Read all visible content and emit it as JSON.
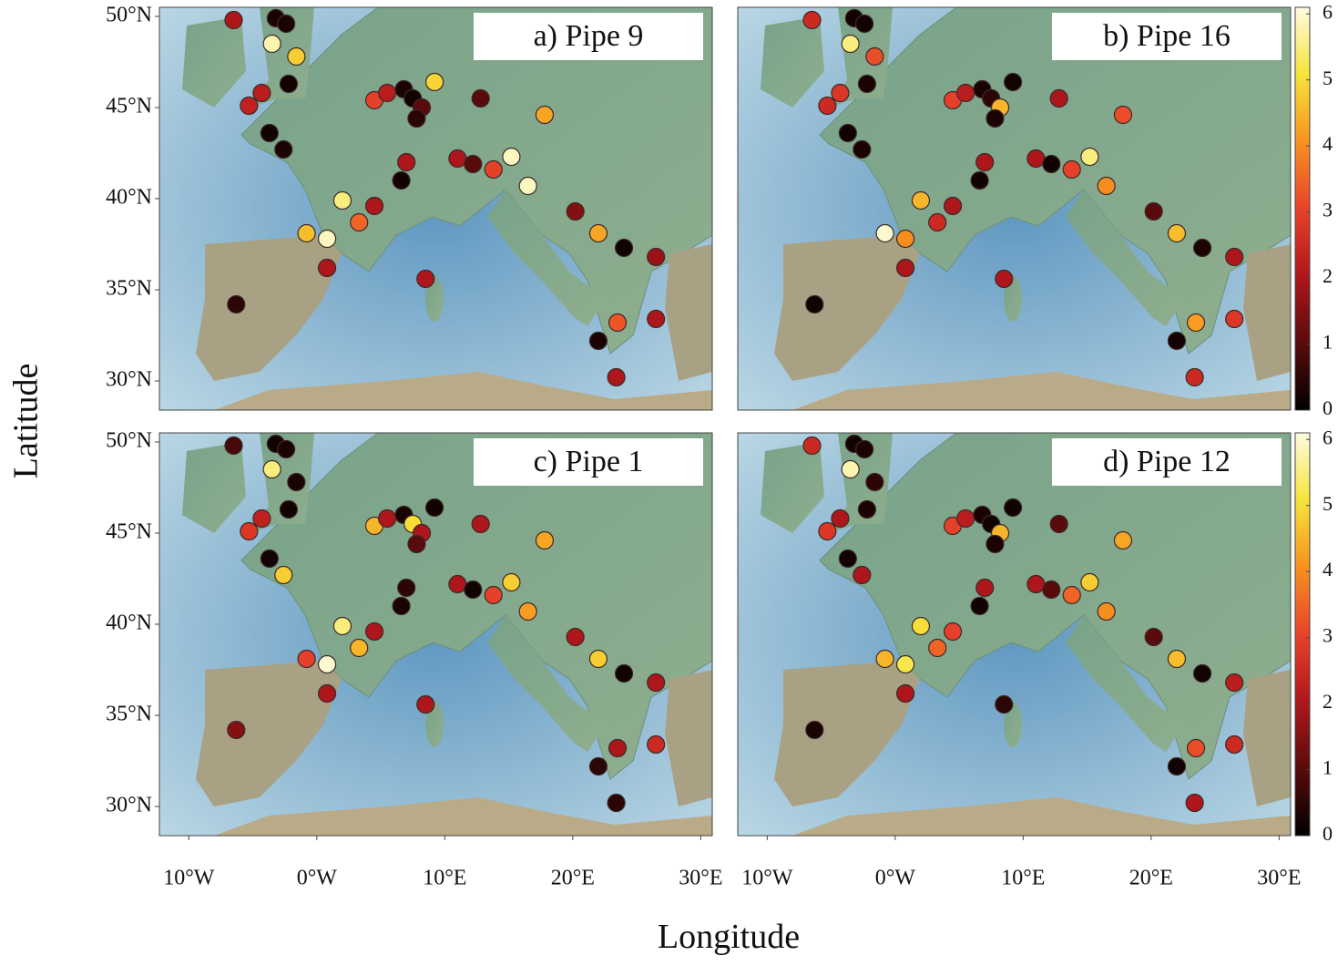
{
  "chart_data": [
    {
      "type": "scatter",
      "title": "a) Pipe 9",
      "xlim": [
        -12.3,
        30.9
      ],
      "ylim": [
        28.4,
        50.5
      ],
      "yticks": [
        {
          "value": 30,
          "label": "30°N"
        },
        {
          "value": 35,
          "label": "35°N"
        },
        {
          "value": 40,
          "label": "40°N"
        },
        {
          "value": 45,
          "label": "45°N"
        },
        {
          "value": 50,
          "label": "50°N"
        }
      ],
      "x": [
        -6.5,
        -3.2,
        -2.4,
        -3.5,
        -1.6,
        -2.2,
        -5.3,
        -4.3,
        -3.7,
        -2.6,
        4.5,
        5.5,
        6.8,
        7.5,
        8.2,
        9.2,
        7.8,
        12.8,
        17.8,
        11,
        12.2,
        13.8,
        15.2,
        16.5,
        7,
        6.6,
        4.5,
        2,
        3.3,
        -0.8,
        0.8,
        0.8,
        -6.3,
        8.5,
        20.2,
        22,
        24,
        26.5,
        22,
        23.5,
        23.4,
        26.5
      ],
      "y": [
        49.8,
        49.9,
        49.6,
        48.5,
        47.8,
        46.3,
        45.1,
        45.8,
        43.6,
        42.7,
        45.4,
        45.8,
        46,
        45.5,
        45,
        46.4,
        44.4,
        45.5,
        44.6,
        42.2,
        41.9,
        41.6,
        42.3,
        40.7,
        42,
        41,
        39.6,
        39.9,
        38.7,
        38.1,
        37.8,
        36.2,
        34.2,
        35.6,
        39.3,
        38.1,
        37.3,
        36.8,
        32.2,
        33.2,
        30.2,
        33.4
      ],
      "values": [
        2,
        0.3,
        0.3,
        5.8,
        4.8,
        0.2,
        2.3,
        2.2,
        0.2,
        0.3,
        3,
        2.2,
        0.3,
        0.2,
        1,
        4.9,
        0.5,
        1,
        4.3,
        2,
        1,
        3,
        5.9,
        5.9,
        2,
        0.2,
        2,
        5.5,
        3.5,
        4.6,
        5.9,
        2,
        0.5,
        2,
        1.5,
        4.3,
        0.2,
        1.8,
        0.3,
        3.3,
        2,
        2
      ]
    },
    {
      "type": "scatter",
      "title": "b) Pipe 16",
      "xlim": [
        -12.3,
        30.9
      ],
      "ylim": [
        28.4,
        50.5
      ],
      "colorbar": {
        "lim": [
          0,
          6.1
        ],
        "ticks": [
          0,
          1,
          2,
          3,
          4,
          5,
          6
        ]
      },
      "x": [
        -6.5,
        -3.2,
        -2.4,
        -3.5,
        -1.6,
        -2.2,
        -5.3,
        -4.3,
        -3.7,
        -2.6,
        4.5,
        5.5,
        6.8,
        7.5,
        8.2,
        9.2,
        7.8,
        12.8,
        17.8,
        11,
        12.2,
        13.8,
        15.2,
        16.5,
        7,
        6.6,
        4.5,
        2,
        3.3,
        -0.8,
        0.8,
        0.8,
        -6.3,
        8.5,
        20.2,
        22,
        24,
        26.5,
        22,
        23.5,
        23.4,
        26.5
      ],
      "y": [
        49.8,
        49.9,
        49.6,
        48.5,
        47.8,
        46.3,
        45.1,
        45.8,
        43.6,
        42.7,
        45.4,
        45.8,
        46,
        45.5,
        45,
        46.4,
        44.4,
        45.5,
        44.6,
        42.2,
        41.9,
        41.6,
        42.3,
        40.7,
        42,
        41,
        39.6,
        39.9,
        38.7,
        38.1,
        37.8,
        36.2,
        34.2,
        35.6,
        39.3,
        38.1,
        37.3,
        36.8,
        32.2,
        33.2,
        30.2,
        33.4
      ],
      "values": [
        2.5,
        0.2,
        0.2,
        5.5,
        3.2,
        0.3,
        2.5,
        2.8,
        0.2,
        0.3,
        3,
        2.2,
        0.3,
        0.5,
        4.5,
        0.2,
        0.3,
        2,
        3.2,
        2,
        0.2,
        3,
        5.5,
        4,
        2,
        0.2,
        2,
        4.5,
        2.5,
        6,
        4,
        2,
        0.2,
        2,
        1,
        4.6,
        0.3,
        2,
        0.2,
        4.2,
        2.5,
        2.8
      ]
    },
    {
      "type": "scatter",
      "title": "c) Pipe 1",
      "xlim": [
        -12.3,
        30.9
      ],
      "ylim": [
        28.4,
        50.5
      ],
      "yticks": [
        {
          "value": 30,
          "label": "30°N"
        },
        {
          "value": 35,
          "label": "35°N"
        },
        {
          "value": 40,
          "label": "40°N"
        },
        {
          "value": 45,
          "label": "45°N"
        },
        {
          "value": 50,
          "label": "50°N"
        }
      ],
      "xticks": [
        {
          "value": -10,
          "label": "10°W"
        },
        {
          "value": 0,
          "label": "0°W"
        },
        {
          "value": 10,
          "label": "10°E"
        },
        {
          "value": 20,
          "label": "20°E"
        },
        {
          "value": 30,
          "label": "30°E"
        }
      ],
      "x": [
        -6.5,
        -3.2,
        -2.4,
        -3.5,
        -1.6,
        -2.2,
        -5.3,
        -4.3,
        -3.7,
        -2.6,
        4.5,
        5.5,
        6.8,
        7.5,
        8.2,
        9.2,
        7.8,
        12.8,
        17.8,
        11,
        12.2,
        13.8,
        15.2,
        16.5,
        7,
        6.6,
        4.5,
        2,
        3.3,
        -0.8,
        0.8,
        0.8,
        -6.3,
        8.5,
        20.2,
        22,
        24,
        26.5,
        22,
        23.5,
        23.4,
        26.5
      ],
      "y": [
        49.8,
        49.9,
        49.6,
        48.5,
        47.8,
        46.3,
        45.1,
        45.8,
        43.6,
        42.7,
        45.4,
        45.8,
        46,
        45.5,
        45,
        46.4,
        44.4,
        45.5,
        44.6,
        42.2,
        41.9,
        41.6,
        42.3,
        40.7,
        42,
        41,
        39.6,
        39.9,
        38.7,
        38.1,
        37.8,
        36.2,
        34.2,
        35.6,
        39.3,
        38.1,
        37.3,
        36.8,
        32.2,
        33.2,
        30.2,
        33.4
      ],
      "values": [
        0.8,
        0.2,
        0.3,
        5.5,
        0.3,
        0.2,
        2.8,
        2.3,
        0.2,
        4.8,
        4.5,
        2,
        0.3,
        5,
        2,
        0.2,
        1,
        2,
        4.3,
        2,
        0.2,
        3,
        4.8,
        4.2,
        0.5,
        0.3,
        2,
        5.5,
        4.5,
        3,
        6,
        2,
        1.5,
        2,
        2,
        4.8,
        0.2,
        2,
        0.5,
        2,
        0.5,
        2.5
      ]
    },
    {
      "type": "scatter",
      "title": "d) Pipe 12",
      "xlim": [
        -12.3,
        30.9
      ],
      "ylim": [
        28.4,
        50.5
      ],
      "xticks": [
        {
          "value": -10,
          "label": "10°W"
        },
        {
          "value": 0,
          "label": "0°W"
        },
        {
          "value": 10,
          "label": "10°E"
        },
        {
          "value": 20,
          "label": "20°E"
        },
        {
          "value": 30,
          "label": "30°E"
        }
      ],
      "colorbar": {
        "lim": [
          0,
          6.1
        ],
        "ticks": [
          0,
          1,
          2,
          3,
          4,
          5,
          6
        ]
      },
      "x": [
        -6.5,
        -3.2,
        -2.4,
        -3.5,
        -1.6,
        -2.2,
        -5.3,
        -4.3,
        -3.7,
        -2.6,
        4.5,
        5.5,
        6.8,
        7.5,
        8.2,
        9.2,
        7.8,
        12.8,
        17.8,
        11,
        12.2,
        13.8,
        15.2,
        16.5,
        7,
        6.6,
        4.5,
        2,
        3.3,
        -0.8,
        0.8,
        0.8,
        -6.3,
        8.5,
        20.2,
        22,
        24,
        26.5,
        22,
        23.5,
        23.4,
        26.5
      ],
      "y": [
        49.8,
        49.9,
        49.6,
        48.5,
        47.8,
        46.3,
        45.1,
        45.8,
        43.6,
        42.7,
        45.4,
        45.8,
        46,
        45.5,
        45,
        46.4,
        44.4,
        45.5,
        44.6,
        42.2,
        41.9,
        41.6,
        42.3,
        40.7,
        42,
        41,
        39.6,
        39.9,
        38.7,
        38.1,
        37.8,
        36.2,
        34.2,
        35.6,
        39.3,
        38.1,
        37.3,
        36.8,
        32.2,
        33.2,
        30.2,
        33.4
      ],
      "values": [
        2.5,
        0.2,
        0.3,
        5.8,
        0.5,
        0.3,
        2.8,
        2,
        0.2,
        2,
        3,
        2.2,
        0.3,
        0.2,
        4.5,
        0.2,
        0.3,
        1,
        4.3,
        2,
        1,
        3.5,
        4.8,
        4,
        2,
        0.2,
        3,
        5,
        3.5,
        4.5,
        5.2,
        2,
        0.3,
        0.5,
        1,
        4.6,
        0.2,
        2.2,
        0.2,
        3.2,
        2,
        2.5
      ]
    }
  ],
  "colormap": [
    "#000000",
    "#5a0b0b",
    "#b0161a",
    "#e8422a",
    "#f7921e",
    "#f6e43a",
    "#fdfbe0"
  ],
  "xlabel": "Longitude",
  "ylabel": "Latitude"
}
